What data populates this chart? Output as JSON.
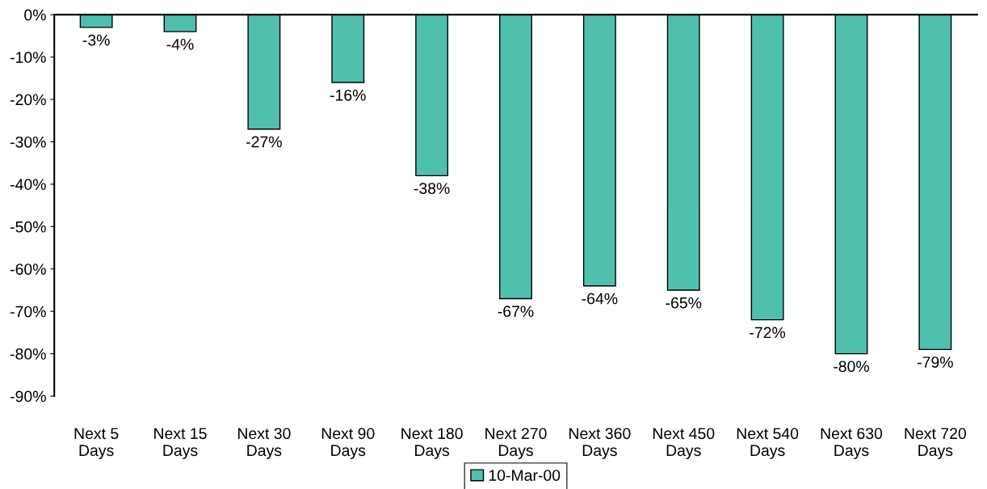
{
  "chart_data": {
    "type": "bar",
    "categories": [
      "Next 5\nDays",
      "Next 15\nDays",
      "Next 30\nDays",
      "Next 90\nDays",
      "Next 180\nDays",
      "Next 270\nDays",
      "Next 360\nDays",
      "Next 450\nDays",
      "Next 540\nDays",
      "Next 630\nDays",
      "Next 720\nDays"
    ],
    "series": [
      {
        "name": "10-Mar-00",
        "color": "#4fbfae",
        "values": [
          -3,
          -4,
          -27,
          -16,
          -38,
          -67,
          -64,
          -65,
          -72,
          -80,
          -79
        ],
        "value_labels": [
          "-3%",
          "-4%",
          "-27%",
          "-16%",
          "-38%",
          "-67%",
          "-64%",
          "-65%",
          "-72%",
          "-80%",
          "-79%"
        ]
      }
    ],
    "ylim": [
      -90,
      0
    ],
    "yticks": [
      {
        "value": 0,
        "label": "0%"
      },
      {
        "value": -10,
        "label": "-10%"
      },
      {
        "value": -20,
        "label": "-20%"
      },
      {
        "value": -30,
        "label": "-30%"
      },
      {
        "value": -40,
        "label": "-40%"
      },
      {
        "value": -50,
        "label": "-50%"
      },
      {
        "value": -60,
        "label": "-60%"
      },
      {
        "value": -70,
        "label": "-70%"
      },
      {
        "value": -80,
        "label": "-80%"
      },
      {
        "value": -90,
        "label": "-90%"
      }
    ],
    "grid": false,
    "legend": "bottom"
  }
}
